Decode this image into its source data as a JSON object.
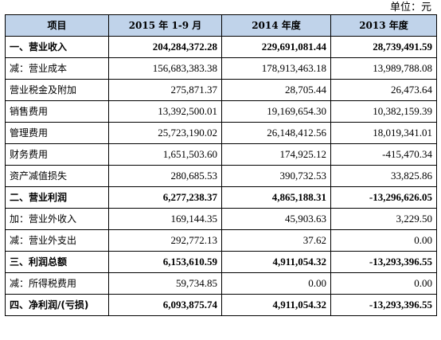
{
  "unit_label": "单位：元",
  "headers": [
    "项目",
    "2015 年 1-9 月",
    "2014 年度",
    "2013 年度"
  ],
  "rows": [
    {
      "label": "一、营业收入",
      "v2015": "204,284,372.28",
      "v2014": "229,691,081.44",
      "v2013": "28,739,491.59",
      "bold": true
    },
    {
      "label": "减：营业成本",
      "v2015": "156,683,383.38",
      "v2014": "178,913,463.18",
      "v2013": "13,989,788.08",
      "bold": false
    },
    {
      "label": "营业税金及附加",
      "v2015": "275,871.37",
      "v2014": "28,705.44",
      "v2013": "26,473.64",
      "bold": false
    },
    {
      "label": "销售费用",
      "v2015": "13,392,500.01",
      "v2014": "19,169,654.30",
      "v2013": "10,382,159.39",
      "bold": false
    },
    {
      "label": "管理费用",
      "v2015": "25,723,190.02",
      "v2014": "26,148,412.56",
      "v2013": "18,019,341.01",
      "bold": false
    },
    {
      "label": "财务费用",
      "v2015": "1,651,503.60",
      "v2014": "174,925.12",
      "v2013": "-415,470.34",
      "bold": false
    },
    {
      "label": "资产减值损失",
      "v2015": "280,685.53",
      "v2014": "390,732.53",
      "v2013": "33,825.86",
      "bold": false
    },
    {
      "label": "二、营业利润",
      "v2015": "6,277,238.37",
      "v2014": "4,865,188.31",
      "v2013": "-13,296,626.05",
      "bold": true
    },
    {
      "label": "加：营业外收入",
      "v2015": "169,144.35",
      "v2014": "45,903.63",
      "v2013": "3,229.50",
      "bold": false
    },
    {
      "label": "减：营业外支出",
      "v2015": "292,772.13",
      "v2014": "37.62",
      "v2013": "0.00",
      "bold": false
    },
    {
      "label": "三、利润总额",
      "v2015": "6,153,610.59",
      "v2014": "4,911,054.32",
      "v2013": "-13,293,396.55",
      "bold": true
    },
    {
      "label": "减：所得税费用",
      "v2015": "59,734.85",
      "v2014": "0.00",
      "v2013": "0.00",
      "bold": false
    },
    {
      "label": "四、净利润/(亏损)",
      "v2015": "6,093,875.74",
      "v2014": "4,911,054.32",
      "v2013": "-13,293,396.55",
      "bold": true
    }
  ],
  "colors": {
    "header_bg": "#c0d3ea",
    "border": "#000000",
    "text": "#000000"
  }
}
